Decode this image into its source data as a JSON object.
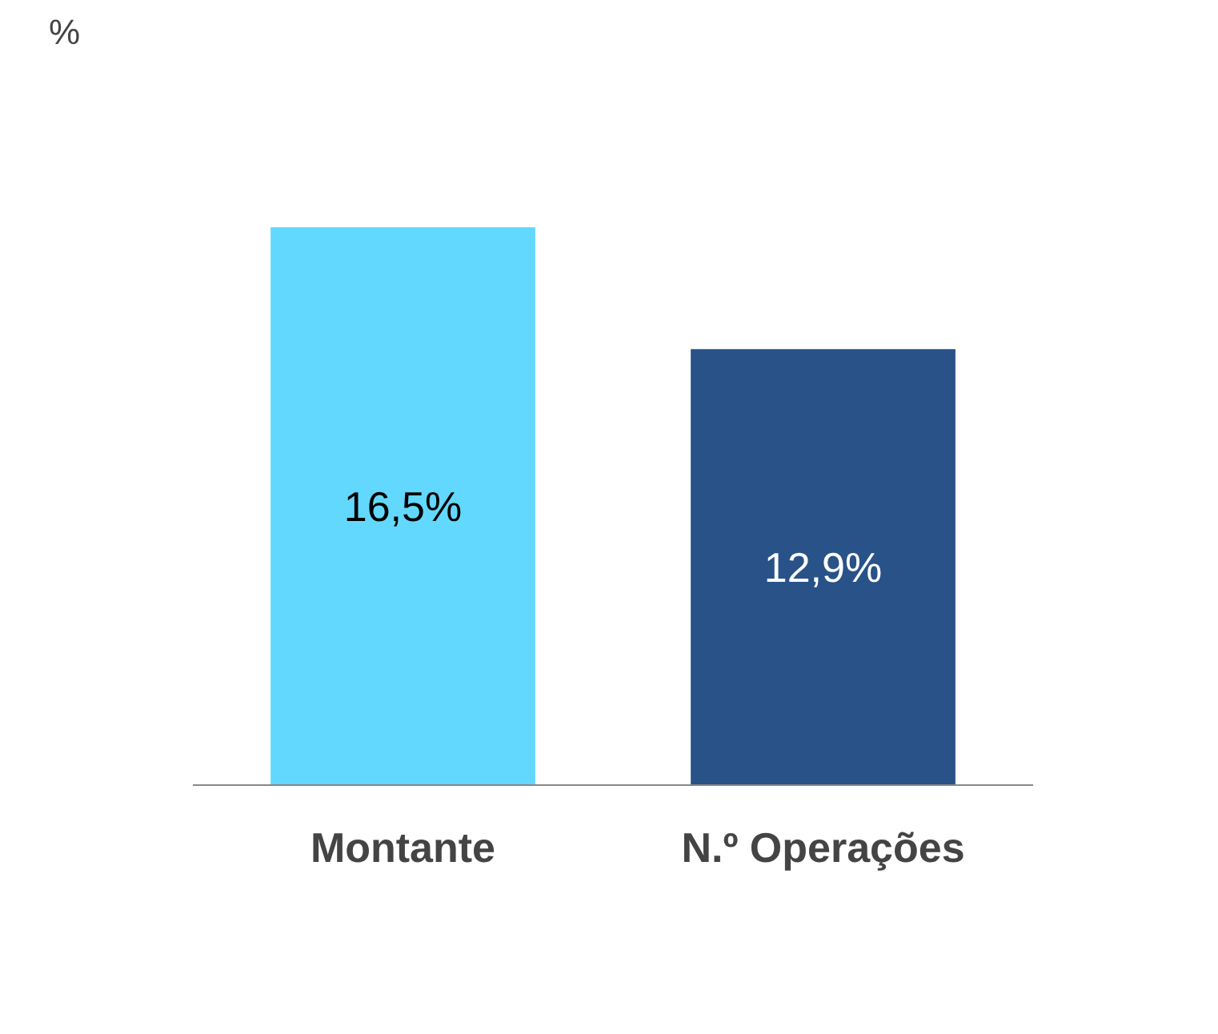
{
  "chart_data": {
    "type": "bar",
    "annotations": [
      "%"
    ],
    "categories": [
      "Montante",
      "N.º Operações"
    ],
    "values": [
      16.5,
      12.9
    ],
    "colors": [
      "#62d8fe",
      "#285288"
    ],
    "value_labels": [
      "16,5%",
      "12,9%"
    ],
    "grid": false
  }
}
